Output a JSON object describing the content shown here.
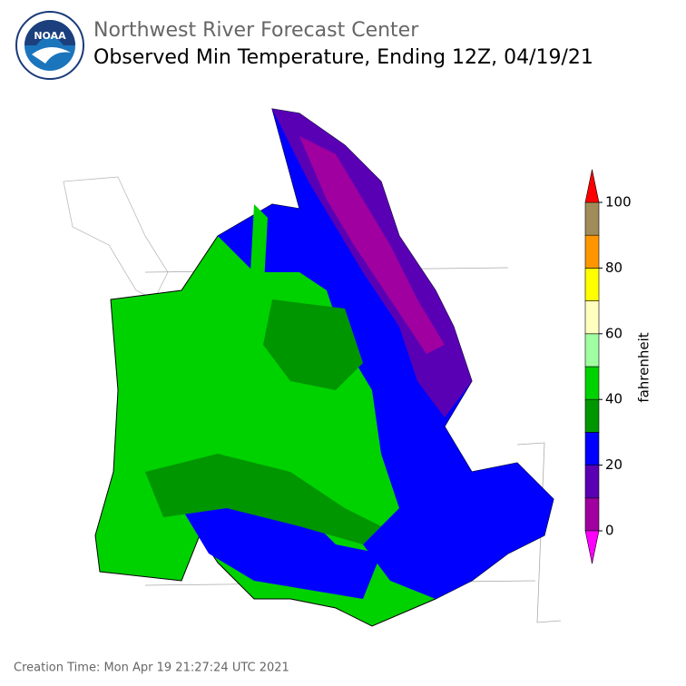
{
  "header": {
    "org": "Northwest River Forecast Center",
    "title": "Observed Min Temperature, Ending 12Z, 04/19/21",
    "logo_text": "NOAA"
  },
  "colorbar": {
    "label": "fahrenheit",
    "bounds": [
      0,
      10,
      20,
      30,
      40,
      50,
      60,
      70,
      80,
      90,
      100
    ],
    "ticks": [
      0,
      20,
      40,
      60,
      80,
      100
    ],
    "colors": [
      "#a000a0",
      "#5a00b4",
      "#0000ff",
      "#009600",
      "#00d200",
      "#a0ffa0",
      "#ffffc0",
      "#ffff00",
      "#ff9600",
      "#a08c5a"
    ],
    "under_color": "#ff00ff",
    "over_color": "#ff0000"
  },
  "footer": "Creation Time: Mon Apr 19 21:27:24 UTC 2021"
}
